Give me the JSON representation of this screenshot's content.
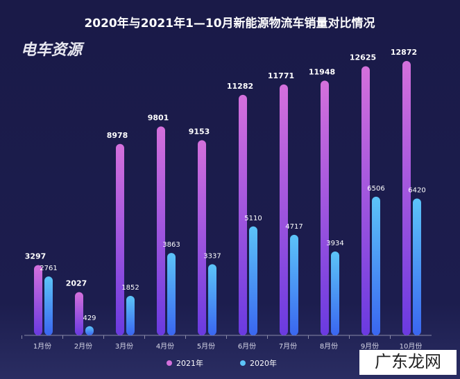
{
  "chart_data": {
    "type": "bar",
    "title": "2020年与2021年1—10月新能源物流车销量对比情况",
    "annotations": [
      "电车资源",
      "广东龙网"
    ],
    "categories": [
      "1月份",
      "2月份",
      "3月份",
      "4月份",
      "5月份",
      "6月份",
      "7月份",
      "8月份",
      "9月份",
      "10月份"
    ],
    "series": [
      {
        "name": "2021年",
        "color": "#d470dc",
        "values": [
          3297,
          2027,
          8978,
          9801,
          9153,
          11282,
          11771,
          11948,
          12625,
          12872
        ]
      },
      {
        "name": "2020年",
        "color": "#5cc4f8",
        "values": [
          2761,
          429,
          1852,
          3863,
          3337,
          5110,
          4717,
          3934,
          6506,
          6420
        ]
      }
    ]
  }
}
